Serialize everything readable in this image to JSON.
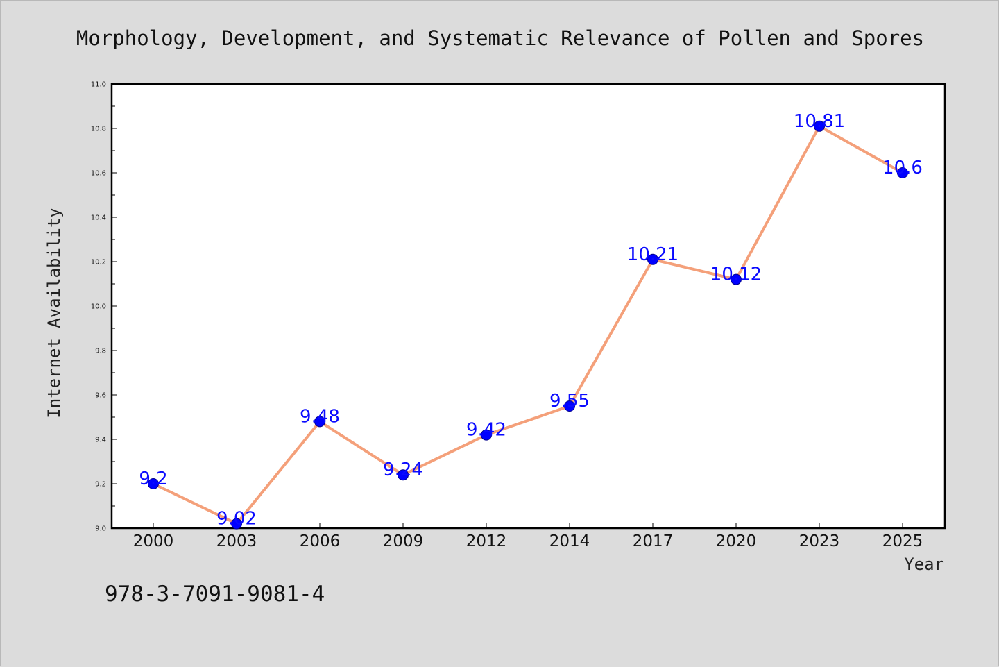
{
  "chart_data": {
    "type": "line",
    "title": "Morphology, Development, and Systematic Relevance of Pollen and Spores",
    "xlabel": "Year",
    "ylabel": "Internet Availability",
    "categories": [
      "2000",
      "2003",
      "2006",
      "2009",
      "2012",
      "2014",
      "2017",
      "2020",
      "2023",
      "2025"
    ],
    "series": [
      {
        "values": [
          9.2,
          9.02,
          9.48,
          9.24,
          9.42,
          9.55,
          10.21,
          10.12,
          10.81,
          10.6
        ],
        "data_labels": [
          "9.2",
          "9.02",
          "9.48",
          "9.24",
          "9.42",
          "9.55",
          "10.21",
          "10.12",
          "10.81",
          "10.6"
        ],
        "line_color": "#f4a07a",
        "marker_color": "#0000ff"
      }
    ],
    "ylim": [
      9.0,
      11.0
    ],
    "yticks": [
      "9.0",
      "9.2",
      "9.4",
      "9.6",
      "9.8",
      "10.0",
      "10.2",
      "10.4",
      "10.6",
      "10.8",
      "11.0"
    ],
    "grid": false,
    "legend": "none"
  },
  "footer": {
    "isbn": "978-3-7091-9081-4"
  }
}
